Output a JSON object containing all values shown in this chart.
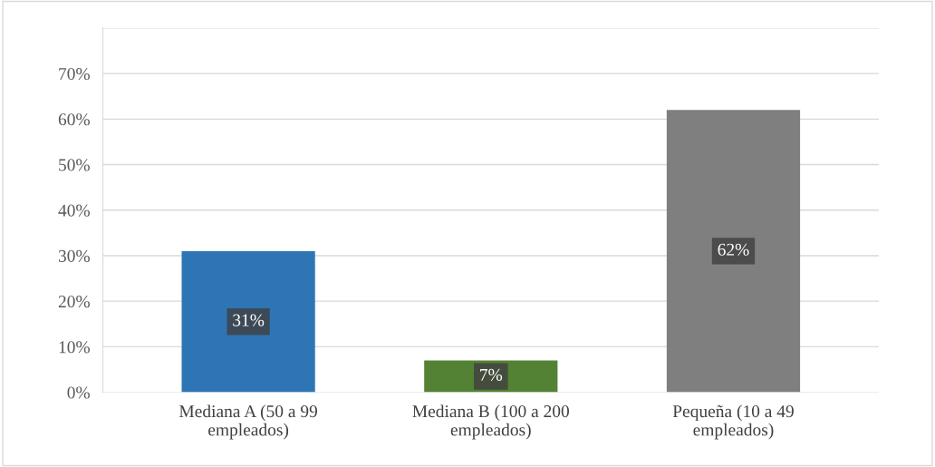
{
  "chart_data": {
    "type": "bar",
    "categories": [
      "Mediana A (50 a 99\nempleados)",
      "Mediana B (100 a 200\nempleados)",
      "Pequeña (10 a 49\nempleados)"
    ],
    "values": [
      31,
      7,
      62
    ],
    "colors": [
      "#2e75b6",
      "#548235",
      "#7f7f7f"
    ],
    "value_labels": [
      "31%",
      "7%",
      "62%"
    ],
    "ylim": [
      0,
      80
    ],
    "yticks": [
      {
        "value": 0,
        "label": "0%"
      },
      {
        "value": 10,
        "label": "10%"
      },
      {
        "value": 20,
        "label": "20%"
      },
      {
        "value": 30,
        "label": "30%"
      },
      {
        "value": 40,
        "label": "40%"
      },
      {
        "value": 50,
        "label": "50%"
      },
      {
        "value": 60,
        "label": "60%"
      },
      {
        "value": 70,
        "label": "70%"
      },
      {
        "value": 80,
        "label": null
      }
    ],
    "grid": "y"
  }
}
